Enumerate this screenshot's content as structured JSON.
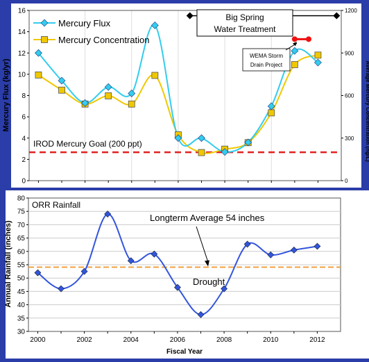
{
  "chart_data": [
    {
      "type": "line",
      "x": [
        2000,
        2001,
        2002,
        2003,
        2004,
        2005,
        2006,
        2007,
        2008,
        2009,
        2010,
        2011,
        2012
      ],
      "ylabel": "Mercury Flux (kg/yr)",
      "y2label": "Average Mercury Concentration (ng/L)",
      "ylim": [
        0,
        16
      ],
      "y2lim": [
        0,
        1200
      ],
      "yticks": [
        "0",
        "2",
        "4",
        "6",
        "8",
        "10",
        "12",
        "14",
        "16"
      ],
      "y2ticks": [
        "0",
        "300",
        "600",
        "900",
        "1200"
      ],
      "series": [
        {
          "name": "Mercury Flux",
          "axis": "left",
          "color": "#33ccee",
          "values": [
            12.0,
            9.4,
            7.3,
            8.8,
            8.2,
            14.6,
            4.0,
            4.0,
            2.7,
            3.6,
            7.0,
            12.2,
            11.1
          ]
        },
        {
          "name": "Mercury Concentration",
          "axis": "right",
          "color": "#f0c800",
          "values": [
            745,
            638,
            540,
            598,
            540,
            742,
            323,
            198,
            222,
            268,
            478,
            818,
            885
          ]
        }
      ],
      "reference_line": {
        "label": "IROD Mercury Goal (200 ppt)",
        "axis": "right",
        "value": 200,
        "color": "#e02020"
      },
      "annotations": {
        "big_spring": {
          "line1": "Big Spring",
          "line2": "Water Treatment",
          "x_start": 2006.5,
          "x_end": 2012.8,
          "level": 15.5
        },
        "wema": {
          "line1": "WEMA Storm",
          "line2": "Drain Project",
          "x_start": 2011.0,
          "x_end": 2011.6,
          "level": 13.3,
          "color": "#ee1111"
        }
      },
      "legend": "top-left"
    },
    {
      "type": "line",
      "title": "ORR Rainfall",
      "x": [
        2000,
        2001,
        2002,
        2003,
        2004,
        2005,
        2006,
        2007,
        2008,
        2009,
        2010,
        2011,
        2012
      ],
      "xlabel": "Fiscal Year",
      "ylabel": "Annual Rainfall (inches)",
      "ylim": [
        30,
        80
      ],
      "yticks": [
        "30",
        "35",
        "40",
        "45",
        "50",
        "55",
        "60",
        "65",
        "70",
        "75",
        "80"
      ],
      "xticks": [
        "2000",
        "2002",
        "2004",
        "2006",
        "2008",
        "2010",
        "2012"
      ],
      "series": [
        {
          "name": "",
          "color": "#3355dd",
          "values": [
            52,
            46,
            52.5,
            74,
            56.5,
            59,
            46.5,
            36.3,
            46,
            62.7,
            58.7,
            60.5,
            61.9
          ]
        }
      ],
      "average_line": {
        "label": "Longterm Average 54 inches",
        "value": 54.1,
        "color": "#f0a040"
      },
      "drought_label": "Drought"
    }
  ]
}
